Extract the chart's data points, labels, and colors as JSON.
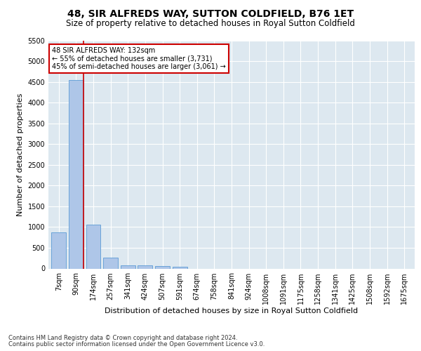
{
  "title": "48, SIR ALFREDS WAY, SUTTON COLDFIELD, B76 1ET",
  "subtitle": "Size of property relative to detached houses in Royal Sutton Coldfield",
  "xlabel": "Distribution of detached houses by size in Royal Sutton Coldfield",
  "ylabel": "Number of detached properties",
  "footnote1": "Contains HM Land Registry data © Crown copyright and database right 2024.",
  "footnote2": "Contains public sector information licensed under the Open Government Licence v3.0.",
  "bar_labels": [
    "7sqm",
    "90sqm",
    "174sqm",
    "257sqm",
    "341sqm",
    "424sqm",
    "507sqm",
    "591sqm",
    "674sqm",
    "758sqm",
    "841sqm",
    "924sqm",
    "1008sqm",
    "1091sqm",
    "1175sqm",
    "1258sqm",
    "1341sqm",
    "1425sqm",
    "1508sqm",
    "1592sqm",
    "1675sqm"
  ],
  "bar_values": [
    880,
    4540,
    1060,
    270,
    80,
    75,
    55,
    50,
    0,
    0,
    0,
    0,
    0,
    0,
    0,
    0,
    0,
    0,
    0,
    0,
    0
  ],
  "bar_color": "#aec6e8",
  "bar_edge_color": "#5b9bd5",
  "highlight_color": "#cc0000",
  "annotation_text": "48 SIR ALFREDS WAY: 132sqm\n← 55% of detached houses are smaller (3,731)\n45% of semi-detached houses are larger (3,061) →",
  "annotation_box_color": "#ffffff",
  "annotation_box_edge_color": "#cc0000",
  "ylim": [
    0,
    5500
  ],
  "yticks": [
    0,
    500,
    1000,
    1500,
    2000,
    2500,
    3000,
    3500,
    4000,
    4500,
    5000,
    5500
  ],
  "bg_color": "#ffffff",
  "plot_bg_color": "#dde8f0",
  "grid_color": "#ffffff",
  "title_fontsize": 10,
  "subtitle_fontsize": 8.5,
  "axis_label_fontsize": 8,
  "tick_fontsize": 7,
  "annotation_fontsize": 7,
  "footnote_fontsize": 6
}
